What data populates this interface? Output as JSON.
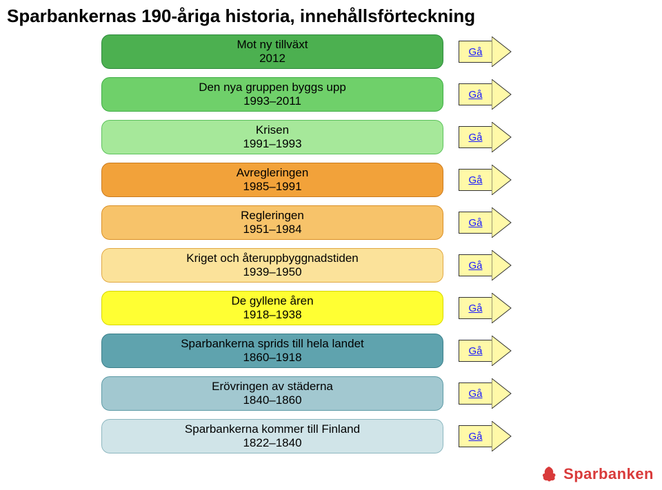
{
  "title": "Sparbankernas 190-åriga historia, innehållsförteckning",
  "arrow_label": "Gå",
  "arrow_fill": "#fff9a8",
  "arrow_stroke": "#333333",
  "link_color": "#1a1aff",
  "logo_text": "Sparbanken",
  "logo_color": "#d93a3a",
  "bars": [
    {
      "line1": "Mot ny tillväxt",
      "line2": "2012",
      "fill": "#4cb050",
      "stroke": "#2e8b3d"
    },
    {
      "line1": "Den nya gruppen byggs upp",
      "line2": "1993–2011",
      "fill": "#6fd06a",
      "stroke": "#3fae46"
    },
    {
      "line1": "Krisen",
      "line2": "1991–1993",
      "fill": "#a6e89a",
      "stroke": "#5cc25c"
    },
    {
      "line1": "Avregleringen",
      "line2": "1985–1991",
      "fill": "#f2a23a",
      "stroke": "#c97a1e"
    },
    {
      "line1": "Regleringen",
      "line2": "1951–1984",
      "fill": "#f7c36a",
      "stroke": "#d98f25"
    },
    {
      "line1": "Kriget och återuppbyggnadstiden",
      "line2": "1939–1950",
      "fill": "#fbe29a",
      "stroke": "#e0a742"
    },
    {
      "line1": "De gyllene åren",
      "line2": "1918–1938",
      "fill": "#ffff33",
      "stroke": "#d6d600"
    },
    {
      "line1": "Sparbankerna sprids till hela landet",
      "line2": "1860–1918",
      "fill": "#5fa3ae",
      "stroke": "#3b7f8a"
    },
    {
      "line1": "Erövringen av städerna",
      "line2": "1840–1860",
      "fill": "#a2c8d0",
      "stroke": "#5c9aa5"
    },
    {
      "line1": "Sparbankerna kommer till Finland",
      "line2": "1822–1840",
      "fill": "#d0e4e8",
      "stroke": "#8cb7bf"
    }
  ]
}
